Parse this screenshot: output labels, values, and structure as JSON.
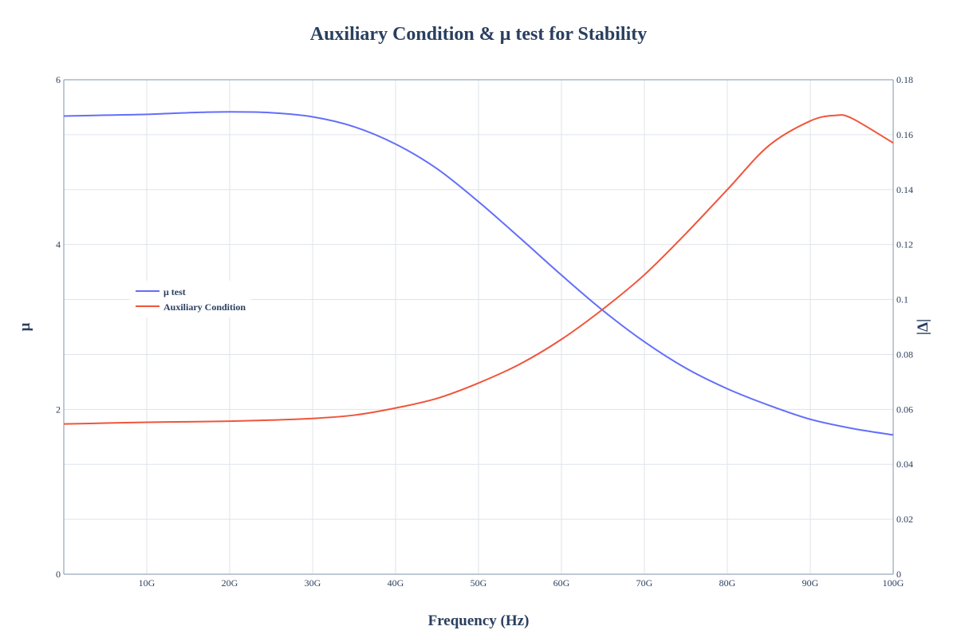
{
  "chart_data": {
    "type": "line",
    "title": "Auxiliary Condition & μ test for Stability",
    "xlabel": "Frequency (Hz)",
    "ylabel_left": "μ",
    "ylabel_right": "|Δ|",
    "x_unit": "Hz",
    "xlim": [
      0,
      100000000000
    ],
    "ylim_left": [
      0,
      6
    ],
    "ylim_right": [
      0,
      0.18
    ],
    "x_ticks": [
      {
        "value": 10000000000,
        "label": "10G"
      },
      {
        "value": 20000000000,
        "label": "20G"
      },
      {
        "value": 30000000000,
        "label": "30G"
      },
      {
        "value": 40000000000,
        "label": "40G"
      },
      {
        "value": 50000000000,
        "label": "50G"
      },
      {
        "value": 60000000000,
        "label": "60G"
      },
      {
        "value": 70000000000,
        "label": "70G"
      },
      {
        "value": 80000000000,
        "label": "80G"
      },
      {
        "value": 90000000000,
        "label": "90G"
      },
      {
        "value": 100000000000,
        "label": "100G"
      }
    ],
    "y_left_ticks": [
      {
        "value": 0,
        "label": "0"
      },
      {
        "value": 2,
        "label": "2"
      },
      {
        "value": 4,
        "label": "4"
      },
      {
        "value": 6,
        "label": "6"
      }
    ],
    "y_right_ticks": [
      {
        "value": 0,
        "label": "0"
      },
      {
        "value": 0.02,
        "label": "0.02"
      },
      {
        "value": 0.04,
        "label": "0.04"
      },
      {
        "value": 0.06,
        "label": "0.06"
      },
      {
        "value": 0.08,
        "label": "0.08"
      },
      {
        "value": 0.1,
        "label": "0.1"
      },
      {
        "value": 0.12,
        "label": "0.12"
      },
      {
        "value": 0.14,
        "label": "0.14"
      },
      {
        "value": 0.16,
        "label": "0.16"
      },
      {
        "value": 0.18,
        "label": "0.18"
      }
    ],
    "grid": true,
    "legend_position": "left-middle",
    "series": [
      {
        "name": "μ test",
        "axis": "left",
        "color": "#636efa",
        "x": [
          0,
          5000000000,
          10000000000,
          15000000000,
          20000000000,
          25000000000,
          30000000000,
          35000000000,
          40000000000,
          45000000000,
          50000000000,
          55000000000,
          60000000000,
          65000000000,
          70000000000,
          75000000000,
          80000000000,
          85000000000,
          90000000000,
          95000000000,
          100000000000
        ],
        "y": [
          5.56,
          5.57,
          5.58,
          5.6,
          5.61,
          5.6,
          5.55,
          5.43,
          5.22,
          4.92,
          4.52,
          4.08,
          3.63,
          3.2,
          2.82,
          2.5,
          2.25,
          2.05,
          1.88,
          1.77,
          1.69
        ]
      },
      {
        "name": "Auxiliary Condition",
        "axis": "right",
        "color": "#ef553b",
        "x": [
          0,
          5000000000,
          10000000000,
          15000000000,
          20000000000,
          25000000000,
          30000000000,
          35000000000,
          40000000000,
          45000000000,
          50000000000,
          55000000000,
          60000000000,
          65000000000,
          70000000000,
          75000000000,
          80000000000,
          85000000000,
          90000000000,
          93000000000,
          95000000000,
          100000000000
        ],
        "y": [
          0.0547,
          0.055,
          0.0553,
          0.0555,
          0.0557,
          0.0561,
          0.0567,
          0.0579,
          0.0605,
          0.064,
          0.0696,
          0.0765,
          0.0855,
          0.0965,
          0.109,
          0.124,
          0.14,
          0.156,
          0.165,
          0.167,
          0.166,
          0.157
        ]
      }
    ]
  }
}
